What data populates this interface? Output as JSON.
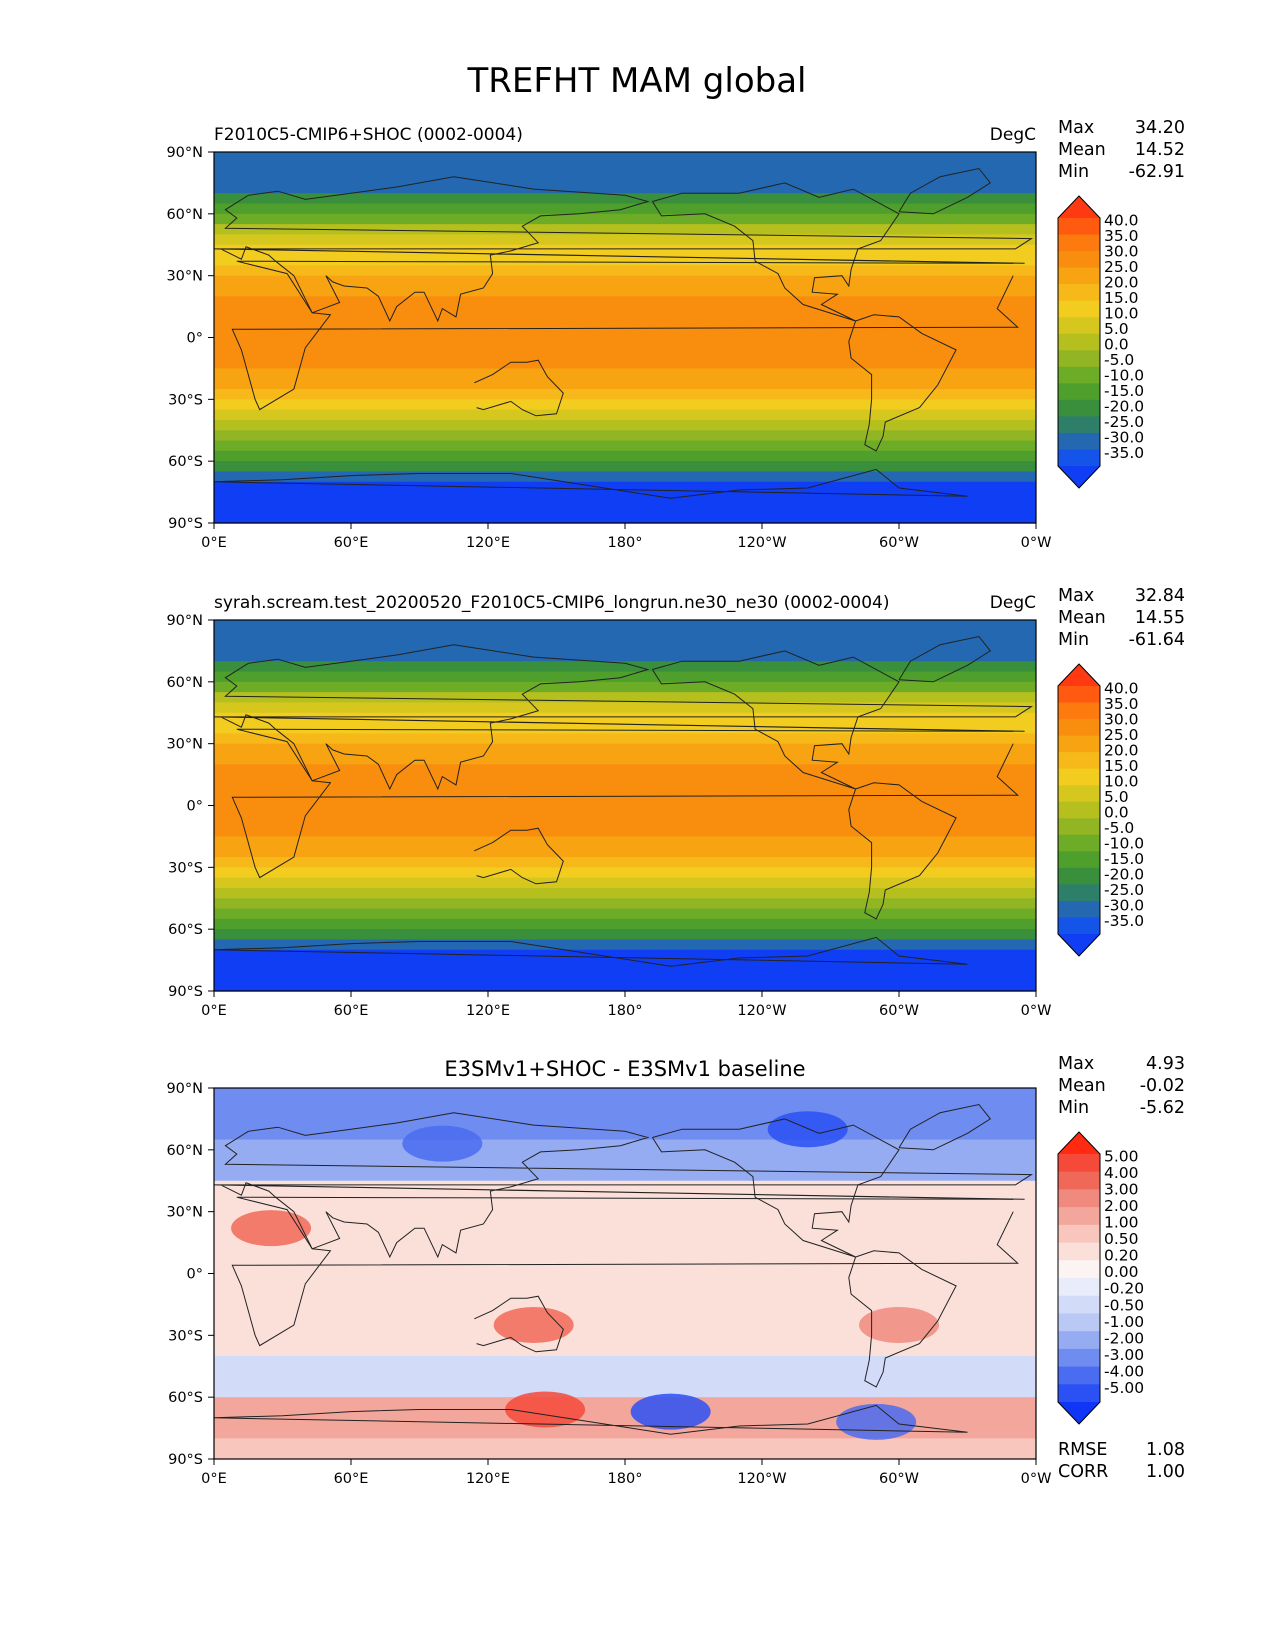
{
  "figure_title": "TREFHT MAM global",
  "chart_data": [
    {
      "type": "heatmap",
      "title_left": "F2010C5-CMIP6+SHOC (0002-0004)",
      "title_center": "",
      "units": "DegC",
      "stats": [
        {
          "label": "Max",
          "value": "34.20"
        },
        {
          "label": "Mean",
          "value": "14.52"
        },
        {
          "label": "Min",
          "value": "-62.91"
        }
      ],
      "colorbar_levels": [
        "40.0",
        "35.0",
        "30.0",
        "25.0",
        "20.0",
        "15.0",
        "10.0",
        "5.0",
        "0.0",
        "-5.0",
        "-10.0",
        "-15.0",
        "-20.0",
        "-25.0",
        "-30.0",
        "-35.0"
      ],
      "colorbar_colors": [
        "#ff3a12",
        "#ff5a10",
        "#fc7a0e",
        "#f98e0e",
        "#f8a312",
        "#f6b919",
        "#f2cc1f",
        "#d6c71e",
        "#b5bf1e",
        "#92b523",
        "#6dac27",
        "#4e9f2c",
        "#3a8f3d",
        "#2e7f6a",
        "#2368b0",
        "#1554e8",
        "#0f3ef5"
      ],
      "xticks": [
        "0°E",
        "60°E",
        "120°E",
        "180°",
        "120°W",
        "60°W",
        "0°W"
      ],
      "yticks": [
        "90°N",
        "60°N",
        "30°N",
        "0°",
        "30°S",
        "60°S",
        "90°S"
      ],
      "footer_stats": []
    },
    {
      "type": "heatmap",
      "title_left": "syrah.scream.test_20200520_F2010C5-CMIP6_longrun.ne30_ne30 (0002-0004)",
      "title_center": "",
      "units": "DegC",
      "stats": [
        {
          "label": "Max",
          "value": "32.84"
        },
        {
          "label": "Mean",
          "value": "14.55"
        },
        {
          "label": "Min",
          "value": "-61.64"
        }
      ],
      "colorbar_levels": [
        "40.0",
        "35.0",
        "30.0",
        "25.0",
        "20.0",
        "15.0",
        "10.0",
        "5.0",
        "0.0",
        "-5.0",
        "-10.0",
        "-15.0",
        "-20.0",
        "-25.0",
        "-30.0",
        "-35.0"
      ],
      "colorbar_colors": [
        "#ff3a12",
        "#ff5a10",
        "#fc7a0e",
        "#f98e0e",
        "#f8a312",
        "#f6b919",
        "#f2cc1f",
        "#d6c71e",
        "#b5bf1e",
        "#92b523",
        "#6dac27",
        "#4e9f2c",
        "#3a8f3d",
        "#2e7f6a",
        "#2368b0",
        "#1554e8",
        "#0f3ef5"
      ],
      "xticks": [
        "0°E",
        "60°E",
        "120°E",
        "180°",
        "120°W",
        "60°W",
        "0°W"
      ],
      "yticks": [
        "90°N",
        "60°N",
        "30°N",
        "0°",
        "30°S",
        "60°S",
        "90°S"
      ],
      "footer_stats": []
    },
    {
      "type": "heatmap",
      "title_left": "",
      "title_center": "E3SMv1+SHOC - E3SMv1 baseline",
      "units": "",
      "stats": [
        {
          "label": "Max",
          "value": "4.93"
        },
        {
          "label": "Mean",
          "value": "-0.02"
        },
        {
          "label": "Min",
          "value": "-5.62"
        }
      ],
      "colorbar_levels": [
        "5.00",
        "4.00",
        "3.00",
        "2.00",
        "1.00",
        "0.50",
        "0.20",
        "0.00",
        "-0.20",
        "-0.50",
        "-1.00",
        "-2.00",
        "-3.00",
        "-4.00",
        "-5.00"
      ],
      "colorbar_colors": [
        "#ff2a10",
        "#f5493a",
        "#f06858",
        "#f08a7e",
        "#f3a79c",
        "#f8c6bc",
        "#fbe0da",
        "#fbf4f2",
        "#e9ecfa",
        "#d2dbf8",
        "#b9c8f5",
        "#95acf2",
        "#6f8cf0",
        "#4a6cf0",
        "#2b50f3",
        "#0f36f7"
      ],
      "xticks": [
        "0°E",
        "60°E",
        "120°E",
        "180°",
        "120°W",
        "60°W",
        "0°W"
      ],
      "yticks": [
        "90°N",
        "60°N",
        "30°N",
        "0°",
        "30°S",
        "60°S",
        "90°S"
      ],
      "footer_stats": [
        {
          "label": "RMSE",
          "value": "1.08"
        },
        {
          "label": "CORR",
          "value": "1.00"
        }
      ]
    }
  ]
}
